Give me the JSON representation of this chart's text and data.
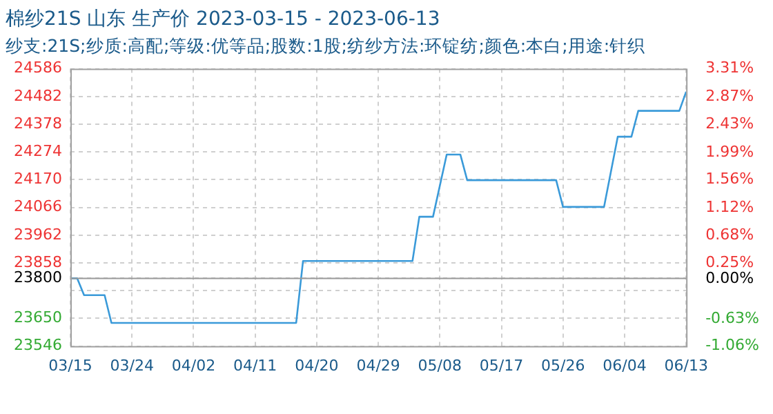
{
  "chart_data": {
    "type": "line",
    "title": "棉纱21S 山东 生产价 2023-03-15 - 2023-06-13",
    "subtitle": "纱支:21S;纱质:高配;等级:优等品;股数:1股;纺纱方法:环锭纺;颜色:本白;用途:针织",
    "x": [
      "2023-03-15",
      "2023-03-16",
      "2023-03-17",
      "2023-03-20",
      "2023-03-21",
      "2023-04-17",
      "2023-04-18",
      "2023-05-04",
      "2023-05-05",
      "2023-05-07",
      "2023-05-09",
      "2023-05-11",
      "2023-05-12",
      "2023-05-25",
      "2023-05-26",
      "2023-06-01",
      "2023-06-03",
      "2023-06-05",
      "2023-06-06",
      "2023-06-12",
      "2023-06-13"
    ],
    "series": [
      {
        "color": "#3a9ad9",
        "values": [
          23800,
          23800,
          23737,
          23737,
          23633,
          23633,
          23865,
          23865,
          24031,
          24031,
          24264,
          24264,
          24168,
          24168,
          24068,
          24068,
          24331,
          24331,
          24428,
          24428,
          24500
        ]
      }
    ],
    "xlim": [
      "2023-03-15",
      "2023-06-13"
    ],
    "xticks": [
      {
        "value": "2023-03-15",
        "label": "03/15"
      },
      {
        "value": "2023-03-24",
        "label": "03/24"
      },
      {
        "value": "2023-04-02",
        "label": "04/02"
      },
      {
        "value": "2023-04-11",
        "label": "04/11"
      },
      {
        "value": "2023-04-20",
        "label": "04/20"
      },
      {
        "value": "2023-04-29",
        "label": "04/29"
      },
      {
        "value": "2023-05-08",
        "label": "05/08"
      },
      {
        "value": "2023-05-17",
        "label": "05/17"
      },
      {
        "value": "2023-05-26",
        "label": "05/26"
      },
      {
        "value": "2023-06-04",
        "label": "06/04"
      },
      {
        "value": "2023-06-13",
        "label": "06/13"
      }
    ],
    "ylim": [
      23546,
      24586
    ],
    "yticks": [
      23546,
      23650,
      {
        "value": 23754,
        "label": null
      },
      23800,
      23858,
      23962,
      24066,
      24170,
      24274,
      24378,
      24482,
      24586
    ],
    "y2lim": [
      -1.06,
      3.31
    ],
    "y2ticks": [
      {
        "value": -1.06,
        "label": "-1.06%"
      },
      {
        "value": -0.63,
        "label": "-0.63%"
      },
      {
        "value": 0,
        "label": "0.00%"
      },
      {
        "value": 0.25,
        "label": "0.25%"
      },
      {
        "value": 0.68,
        "label": "0.68%"
      },
      {
        "value": 1.12,
        "label": "1.12%"
      },
      {
        "value": 1.56,
        "label": "1.56%"
      },
      {
        "value": 1.99,
        "label": "1.99%"
      },
      {
        "value": 2.43,
        "label": "2.43%"
      },
      {
        "value": 2.87,
        "label": "2.87%"
      },
      {
        "value": 3.31,
        "label": "3.31%"
      }
    ],
    "ref_lines": [
      {
        "axis": "y",
        "value": 23800,
        "color": "#999999"
      }
    ],
    "grid": true,
    "legend": false,
    "marker": "none",
    "line_style": "solid"
  }
}
